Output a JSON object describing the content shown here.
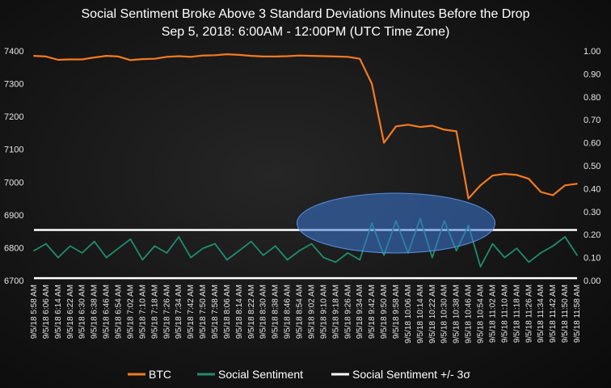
{
  "chart_data": {
    "type": "line",
    "title": "Social Sentiment Broke Above 3 Standard Deviations Minutes Before the Drop",
    "subtitle": "Sep 5, 2018: 6:00AM - 12:00PM  (UTC Time Zone)",
    "y_left": {
      "min": 6700,
      "max": 7400,
      "ticks": [
        "7400",
        "7300",
        "7200",
        "7100",
        "7000",
        "6900",
        "6800",
        "6700"
      ]
    },
    "y_right": {
      "min": 0.0,
      "max": 1.0,
      "ticks": [
        "1.00",
        "0.90",
        "0.80",
        "0.70",
        "0.60",
        "0.50",
        "0.40",
        "0.30",
        "0.20",
        "0.10",
        "0.00"
      ]
    },
    "x_ticks": [
      "9/5/18 5:58 AM",
      "9/5/18 6:06 AM",
      "9/5/18 6:14 AM",
      "9/5/18 6:22 AM",
      "9/5/18 6:30 AM",
      "9/5/18 6:38 AM",
      "9/5/18 6:46 AM",
      "9/5/18 6:54 AM",
      "9/5/18 7:02 AM",
      "9/5/18 7:10 AM",
      "9/5/18 7:18 AM",
      "9/5/18 7:26 AM",
      "9/5/18 7:34 AM",
      "9/5/18 7:42 AM",
      "9/5/18 7:50 AM",
      "9/5/18 7:58 AM",
      "9/5/18 8:06 AM",
      "9/5/18 8:14 AM",
      "9/5/18 8:22 AM",
      "9/5/18 8:30 AM",
      "9/5/18 8:38 AM",
      "9/5/18 8:46 AM",
      "9/5/18 8:54 AM",
      "9/5/18 9:02 AM",
      "9/5/18 9:10 AM",
      "9/5/18 9:18 AM",
      "9/5/18 9:26 AM",
      "9/5/18 9:34 AM",
      "9/5/18 9:42 AM",
      "9/5/18 9:50 AM",
      "9/5/18 9:58 AM",
      "9/5/18 10:06 AM",
      "9/5/18 10:14 AM",
      "9/5/18 10:22 AM",
      "9/5/18 10:30 AM",
      "9/5/18 10:38 AM",
      "9/5/18 10:46 AM",
      "9/5/18 10:54 AM",
      "9/5/18 11:02 AM",
      "9/5/18 11:10 AM",
      "9/5/18 11:18 AM",
      "9/5/18 11:26 AM",
      "9/5/18 11:34 AM",
      "9/5/18 11:42 AM",
      "9/5/18 11:50 AM",
      "9/5/18 11:58 AM"
    ],
    "series": [
      {
        "name": "BTC",
        "axis": "left",
        "color": "#f47a20",
        "x": [
          "9/5/18 5:58 AM",
          "9/5/18 6:06 AM",
          "9/5/18 6:14 AM",
          "9/5/18 6:22 AM",
          "9/5/18 6:30 AM",
          "9/5/18 6:38 AM",
          "9/5/18 6:46 AM",
          "9/5/18 6:54 AM",
          "9/5/18 7:02 AM",
          "9/5/18 7:10 AM",
          "9/5/18 7:18 AM",
          "9/5/18 7:26 AM",
          "9/5/18 7:34 AM",
          "9/5/18 7:42 AM",
          "9/5/18 7:50 AM",
          "9/5/18 7:58 AM",
          "9/5/18 8:06 AM",
          "9/5/18 8:14 AM",
          "9/5/18 8:22 AM",
          "9/5/18 8:30 AM",
          "9/5/18 8:38 AM",
          "9/5/18 8:46 AM",
          "9/5/18 8:54 AM",
          "9/5/18 9:02 AM",
          "9/5/18 9:10 AM",
          "9/5/18 9:18 AM",
          "9/5/18 9:26 AM",
          "9/5/18 9:34 AM",
          "9/5/18 9:42 AM",
          "9/5/18 9:50 AM",
          "9/5/18 9:58 AM",
          "9/5/18 10:06 AM",
          "9/5/18 10:14 AM",
          "9/5/18 10:22 AM",
          "9/5/18 10:30 AM",
          "9/5/18 10:38 AM",
          "9/5/18 10:46 AM",
          "9/5/18 10:54 AM",
          "9/5/18 11:02 AM",
          "9/5/18 11:10 AM",
          "9/5/18 11:18 AM",
          "9/5/18 11:26 AM",
          "9/5/18 11:34 AM",
          "9/5/18 11:42 AM",
          "9/5/18 11:50 AM",
          "9/5/18 11:58 AM"
        ],
        "values": [
          7385,
          7383,
          7373,
          7374,
          7374,
          7380,
          7385,
          7383,
          7372,
          7375,
          7376,
          7382,
          7384,
          7382,
          7386,
          7387,
          7390,
          7388,
          7385,
          7383,
          7383,
          7384,
          7386,
          7385,
          7384,
          7383,
          7382,
          7376,
          7300,
          7120,
          7170,
          7175,
          7168,
          7172,
          7160,
          7155,
          6950,
          6990,
          7020,
          7025,
          7022,
          7010,
          6970,
          6960,
          6990,
          6995
        ]
      },
      {
        "name": "Social Sentiment",
        "axis": "right",
        "color": "#1f8c6e",
        "x": [
          "9/5/18 5:58 AM",
          "9/5/18 6:06 AM",
          "9/5/18 6:14 AM",
          "9/5/18 6:22 AM",
          "9/5/18 6:30 AM",
          "9/5/18 6:38 AM",
          "9/5/18 6:46 AM",
          "9/5/18 6:54 AM",
          "9/5/18 7:02 AM",
          "9/5/18 7:10 AM",
          "9/5/18 7:18 AM",
          "9/5/18 7:26 AM",
          "9/5/18 7:34 AM",
          "9/5/18 7:42 AM",
          "9/5/18 7:50 AM",
          "9/5/18 7:58 AM",
          "9/5/18 8:06 AM",
          "9/5/18 8:14 AM",
          "9/5/18 8:22 AM",
          "9/5/18 8:30 AM",
          "9/5/18 8:38 AM",
          "9/5/18 8:46 AM",
          "9/5/18 8:54 AM",
          "9/5/18 9:02 AM",
          "9/5/18 9:10 AM",
          "9/5/18 9:18 AM",
          "9/5/18 9:26 AM",
          "9/5/18 9:34 AM",
          "9/5/18 9:42 AM",
          "9/5/18 9:50 AM",
          "9/5/18 9:58 AM",
          "9/5/18 10:06 AM",
          "9/5/18 10:14 AM",
          "9/5/18 10:22 AM",
          "9/5/18 10:30 AM",
          "9/5/18 10:38 AM",
          "9/5/18 10:46 AM",
          "9/5/18 10:54 AM",
          "9/5/18 11:02 AM",
          "9/5/18 11:10 AM",
          "9/5/18 11:18 AM",
          "9/5/18 11:26 AM",
          "9/5/18 11:34 AM",
          "9/5/18 11:42 AM",
          "9/5/18 11:50 AM",
          "9/5/18 11:58 AM"
        ],
        "values": [
          0.13,
          0.16,
          0.1,
          0.15,
          0.12,
          0.17,
          0.1,
          0.14,
          0.18,
          0.09,
          0.15,
          0.12,
          0.19,
          0.1,
          0.14,
          0.16,
          0.09,
          0.13,
          0.17,
          0.11,
          0.15,
          0.09,
          0.13,
          0.16,
          0.1,
          0.08,
          0.12,
          0.09,
          0.25,
          0.11,
          0.26,
          0.12,
          0.27,
          0.1,
          0.26,
          0.13,
          0.24,
          0.06,
          0.16,
          0.1,
          0.14,
          0.08,
          0.12,
          0.15,
          0.19,
          0.11
        ]
      },
      {
        "name": "Social Sentiment +/- 3σ",
        "axis": "right",
        "color": "#ffffff",
        "bands": [
          0.22,
          0.01
        ]
      }
    ],
    "annotation": {
      "shape": "ellipse",
      "x_from": "9/5/18 9:02 AM",
      "x_to": "9/5/18 10:54 AM",
      "color": "#3a78d6"
    },
    "legend": {
      "placement": "bottom",
      "items": [
        {
          "label": "BTC",
          "color": "#f47a20"
        },
        {
          "label": "Social Sentiment",
          "color": "#1f8c6e"
        },
        {
          "label": "Social Sentiment +/- 3σ",
          "color": "#ffffff"
        }
      ]
    },
    "grid": false
  }
}
